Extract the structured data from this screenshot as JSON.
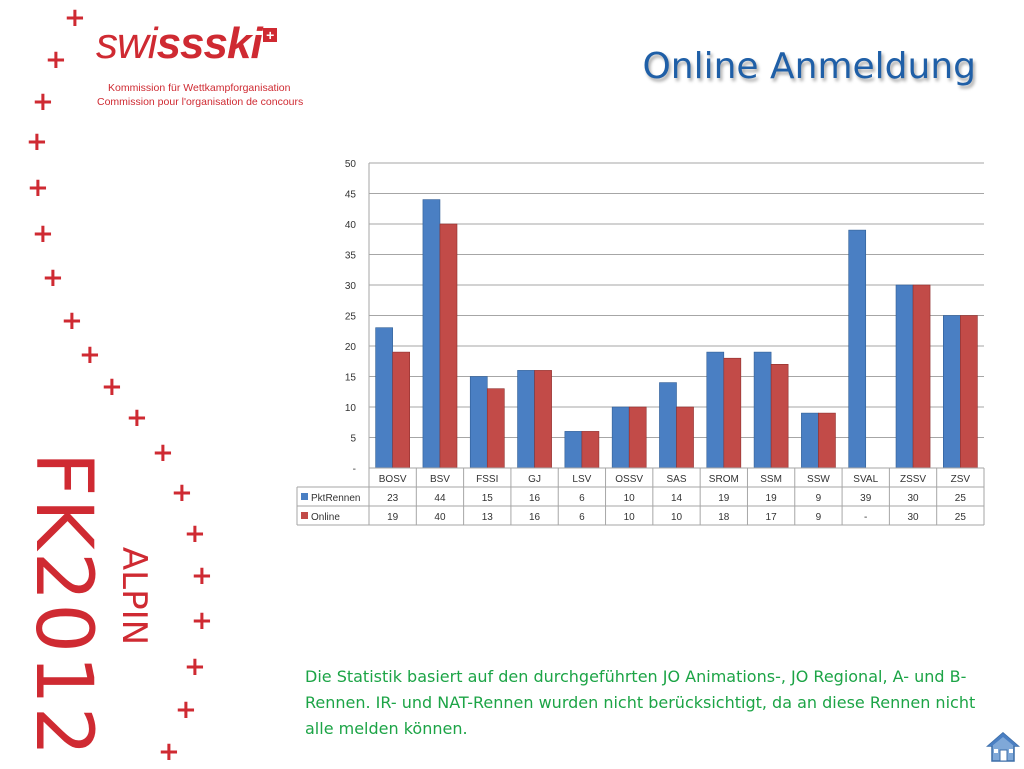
{
  "logo": {
    "brand_light": "sw",
    "brand_i": "i",
    "brand_bold": "ssski",
    "commission_de": "Kommission für Wettkampforganisation",
    "commission_fr": "Commission pour l'organisation de concours"
  },
  "side": {
    "event": "FK2012",
    "discipline": "ALPIN"
  },
  "slide": {
    "title": "Online Anmeldung",
    "note": "Die Statistik basiert auf den durchgeführten JO Animations-, JO Regional, A- und B-Rennen. IR- und NAT-Rennen wurden nicht berücksichtigt, da an diese Rennen nicht alle melden können."
  },
  "colors": {
    "brand_red": "#cf2a32",
    "title_blue": "#1f5fa7",
    "note_green": "#1ca446",
    "series1": "#4a7fc3",
    "series2": "#c24b48"
  },
  "icons": {
    "home": "home-icon"
  },
  "chart_data": {
    "type": "bar",
    "title": "",
    "xlabel": "",
    "ylabel": "",
    "ylim": [
      0,
      50
    ],
    "yticks": [
      "-",
      "5",
      "10",
      "15",
      "20",
      "25",
      "30",
      "35",
      "40",
      "45",
      "50"
    ],
    "grid": true,
    "legend": "data-table",
    "categories": [
      "BOSV",
      "BSV",
      "FSSI",
      "GJ",
      "LSV",
      "OSSV",
      "SAS",
      "SROM",
      "SSM",
      "SSW",
      "SVAL",
      "ZSSV",
      "ZSV"
    ],
    "series": [
      {
        "name": "PktRennen",
        "values": [
          23,
          44,
          15,
          16,
          6,
          10,
          14,
          19,
          19,
          9,
          39,
          30,
          25
        ],
        "labels": [
          "23",
          "44",
          "15",
          "16",
          "6",
          "10",
          "14",
          "19",
          "19",
          "9",
          "39",
          "30",
          "25"
        ]
      },
      {
        "name": "Online",
        "values": [
          19,
          40,
          13,
          16,
          6,
          10,
          10,
          18,
          17,
          9,
          null,
          30,
          25
        ],
        "labels": [
          "19",
          "40",
          "13",
          "16",
          "6",
          "10",
          "10",
          "18",
          "17",
          "9",
          "-",
          "30",
          "25"
        ]
      }
    ]
  }
}
